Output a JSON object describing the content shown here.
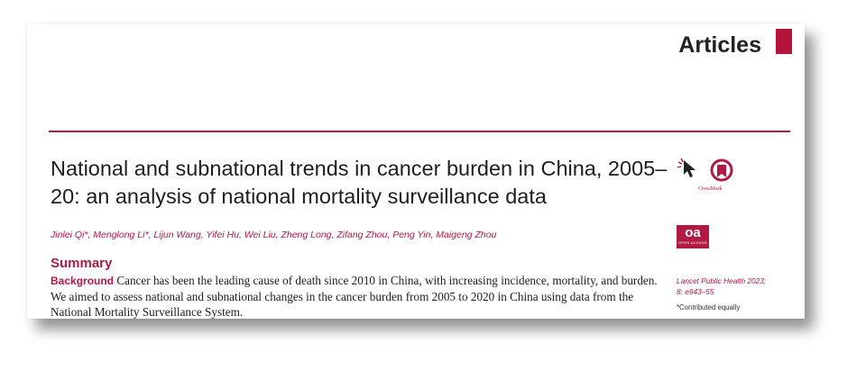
{
  "header": {
    "section_label": "Articles",
    "accent_color": "#b01a44"
  },
  "article": {
    "title": "National and subnational trends in cancer burden in China, 2005–20: an analysis of national mortality surveillance data",
    "authors": "Jinlei Qi*, Menglong Li*, Lijun Wang, Yifei Hu, Wei Liu, Zheng Long, Zifang Zhou, Peng Yin, Maigeng Zhou",
    "summary_heading": "Summary",
    "background_label": "Background",
    "background_text": " Cancer has been the leading cause of death since 2010 in China, with increasing incidence, mortality, and burden. We aimed to assess national and subnational changes in the cancer burden from 2005 to 2020 in China using data from the National Mortality Surveillance System."
  },
  "sidebar": {
    "crossmark_icon": "crossmark-icon",
    "crossmark_label": "CrossMark",
    "open_access_icon": "open-access-icon",
    "open_access_mark": "oa",
    "open_access_label": "OPEN ACCESS",
    "citation_journal": "Lancet Public Health 2023;",
    "citation_pages": "8: e943–55",
    "contributed_note": "*Contributed equally"
  }
}
